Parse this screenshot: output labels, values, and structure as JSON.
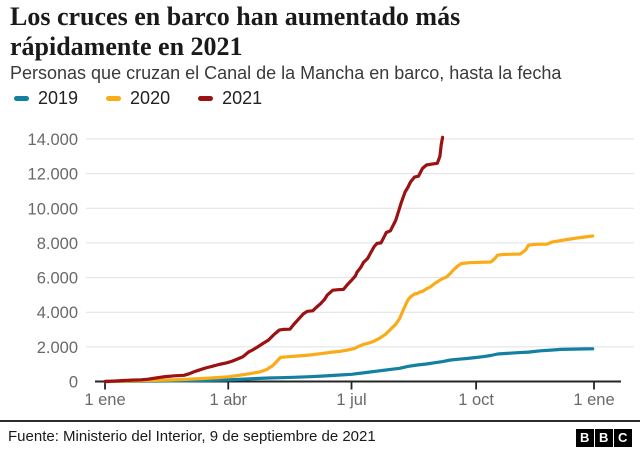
{
  "page": {
    "title": "Los cruces en barco han aumentado más rápidamente en 2021",
    "subtitle": "Personas que cruzan el Canal de la Mancha en barco, hasta la fecha",
    "source": "Fuente: Ministerio del Interior, 9 de septiembre de 2021",
    "logo": {
      "letters": [
        "B",
        "B",
        "C"
      ]
    }
  },
  "colors": {
    "teal": "#1380A1",
    "yellow": "#FAAB18",
    "red": "#9A1212",
    "grid": "#e1e1e1",
    "axis": "#252525",
    "axis_label": "#696969"
  },
  "chart_data": {
    "type": "line",
    "title": "Los cruces en barco han aumentado más rápidamente en 2021",
    "subtitle": "Personas que cruzan el Canal de la Mancha en barco, hasta la fecha",
    "xlabel": "",
    "ylabel": "",
    "grid": true,
    "legend_position": "top",
    "xlim_days": [
      0,
      365
    ],
    "ylim": [
      0,
      14000
    ],
    "x_tick_labels": [
      "1 ene",
      "1 abr",
      "1 jul",
      "1 oct",
      "1 ene"
    ],
    "x_tick_days": [
      0,
      92,
      184,
      277,
      365
    ],
    "y_ticks": [
      0,
      2000,
      4000,
      6000,
      8000,
      10000,
      12000,
      14000
    ],
    "y_tick_labels": [
      "0",
      "2.000",
      "4.000",
      "6.000",
      "8.000",
      "10.000",
      "12.000",
      "14.000"
    ],
    "series": [
      {
        "name": "2019",
        "color": "#1380A1",
        "points": [
          [
            0,
            0
          ],
          [
            31,
            20
          ],
          [
            59,
            40
          ],
          [
            75,
            60
          ],
          [
            91,
            90
          ],
          [
            100,
            120
          ],
          [
            110,
            160
          ],
          [
            122,
            200
          ],
          [
            131,
            220
          ],
          [
            141,
            240
          ],
          [
            153,
            275
          ],
          [
            163,
            320
          ],
          [
            174,
            370
          ],
          [
            184,
            415
          ],
          [
            195,
            520
          ],
          [
            205,
            620
          ],
          [
            213,
            700
          ],
          [
            220,
            760
          ],
          [
            226,
            870
          ],
          [
            233,
            950
          ],
          [
            240,
            1010
          ],
          [
            247,
            1090
          ],
          [
            252,
            1150
          ],
          [
            258,
            1240
          ],
          [
            264,
            1290
          ],
          [
            270,
            1330
          ],
          [
            276,
            1380
          ],
          [
            282,
            1430
          ],
          [
            288,
            1500
          ],
          [
            293,
            1585
          ],
          [
            300,
            1620
          ],
          [
            308,
            1660
          ],
          [
            316,
            1700
          ],
          [
            325,
            1775
          ],
          [
            333,
            1810
          ],
          [
            340,
            1855
          ],
          [
            350,
            1870
          ],
          [
            358,
            1880
          ],
          [
            364,
            1890
          ]
        ]
      },
      {
        "name": "2020",
        "color": "#FAAB18",
        "points": [
          [
            0,
            0
          ],
          [
            15,
            20
          ],
          [
            31,
            50
          ],
          [
            45,
            80
          ],
          [
            60,
            120
          ],
          [
            75,
            180
          ],
          [
            85,
            230
          ],
          [
            92,
            270
          ],
          [
            100,
            360
          ],
          [
            108,
            450
          ],
          [
            116,
            560
          ],
          [
            121,
            700
          ],
          [
            122,
            760
          ],
          [
            125,
            900
          ],
          [
            128,
            1150
          ],
          [
            131,
            1390
          ],
          [
            137,
            1430
          ],
          [
            145,
            1480
          ],
          [
            153,
            1530
          ],
          [
            160,
            1600
          ],
          [
            168,
            1680
          ],
          [
            175,
            1740
          ],
          [
            181,
            1815
          ],
          [
            186,
            1900
          ],
          [
            190,
            2050
          ],
          [
            193,
            2150
          ],
          [
            196,
            2200
          ],
          [
            200,
            2300
          ],
          [
            205,
            2500
          ],
          [
            209,
            2700
          ],
          [
            213,
            3000
          ],
          [
            217,
            3300
          ],
          [
            220,
            3640
          ],
          [
            223,
            4200
          ],
          [
            226,
            4700
          ],
          [
            228,
            4890
          ],
          [
            231,
            5050
          ],
          [
            233,
            5080
          ],
          [
            235,
            5160
          ],
          [
            237,
            5200
          ],
          [
            240,
            5350
          ],
          [
            243,
            5470
          ],
          [
            246,
            5650
          ],
          [
            248,
            5755
          ],
          [
            251,
            5900
          ],
          [
            255,
            6040
          ],
          [
            258,
            6250
          ],
          [
            260,
            6430
          ],
          [
            263,
            6650
          ],
          [
            266,
            6815
          ],
          [
            272,
            6860
          ],
          [
            280,
            6880
          ],
          [
            288,
            6900
          ],
          [
            291,
            7100
          ],
          [
            293,
            7290
          ],
          [
            298,
            7340
          ],
          [
            305,
            7350
          ],
          [
            310,
            7360
          ],
          [
            314,
            7600
          ],
          [
            316,
            7870
          ],
          [
            322,
            7920
          ],
          [
            330,
            7930
          ],
          [
            334,
            8060
          ],
          [
            339,
            8120
          ],
          [
            345,
            8200
          ],
          [
            352,
            8280
          ],
          [
            358,
            8340
          ],
          [
            364,
            8400
          ]
        ]
      },
      {
        "name": "2021",
        "color": "#9A1212",
        "points": [
          [
            0,
            0
          ],
          [
            8,
            30
          ],
          [
            14,
            60
          ],
          [
            20,
            80
          ],
          [
            27,
            100
          ],
          [
            31,
            120
          ],
          [
            38,
            200
          ],
          [
            45,
            280
          ],
          [
            52,
            330
          ],
          [
            59,
            360
          ],
          [
            63,
            450
          ],
          [
            66,
            550
          ],
          [
            70,
            650
          ],
          [
            75,
            780
          ],
          [
            80,
            880
          ],
          [
            85,
            980
          ],
          [
            91,
            1080
          ],
          [
            95,
            1180
          ],
          [
            99,
            1300
          ],
          [
            103,
            1430
          ],
          [
            107,
            1700
          ],
          [
            110,
            1815
          ],
          [
            114,
            2000
          ],
          [
            118,
            2200
          ],
          [
            122,
            2390
          ],
          [
            126,
            2700
          ],
          [
            130,
            2970
          ],
          [
            133,
            3010
          ],
          [
            138,
            3020
          ],
          [
            141,
            3300
          ],
          [
            145,
            3650
          ],
          [
            148,
            3900
          ],
          [
            151,
            4050
          ],
          [
            155,
            4080
          ],
          [
            158,
            4300
          ],
          [
            161,
            4500
          ],
          [
            164,
            4750
          ],
          [
            166,
            5000
          ],
          [
            170,
            5270
          ],
          [
            174,
            5300
          ],
          [
            178,
            5320
          ],
          [
            181,
            5600
          ],
          [
            184,
            5840
          ],
          [
            187,
            6100
          ],
          [
            188,
            6300
          ],
          [
            191,
            6600
          ],
          [
            193,
            6880
          ],
          [
            196,
            7100
          ],
          [
            198,
            7390
          ],
          [
            201,
            7800
          ],
          [
            203,
            7970
          ],
          [
            206,
            8000
          ],
          [
            208,
            8300
          ],
          [
            210,
            8600
          ],
          [
            213,
            8700
          ],
          [
            215,
            9000
          ],
          [
            217,
            9300
          ],
          [
            219,
            9800
          ],
          [
            221,
            10300
          ],
          [
            224,
            10940
          ],
          [
            226,
            11200
          ],
          [
            228,
            11520
          ],
          [
            231,
            11800
          ],
          [
            234,
            11850
          ],
          [
            237,
            12300
          ],
          [
            240,
            12500
          ],
          [
            244,
            12550
          ],
          [
            248,
            12600
          ],
          [
            250,
            13000
          ],
          [
            251,
            13700
          ],
          [
            252,
            14100
          ]
        ]
      }
    ]
  }
}
